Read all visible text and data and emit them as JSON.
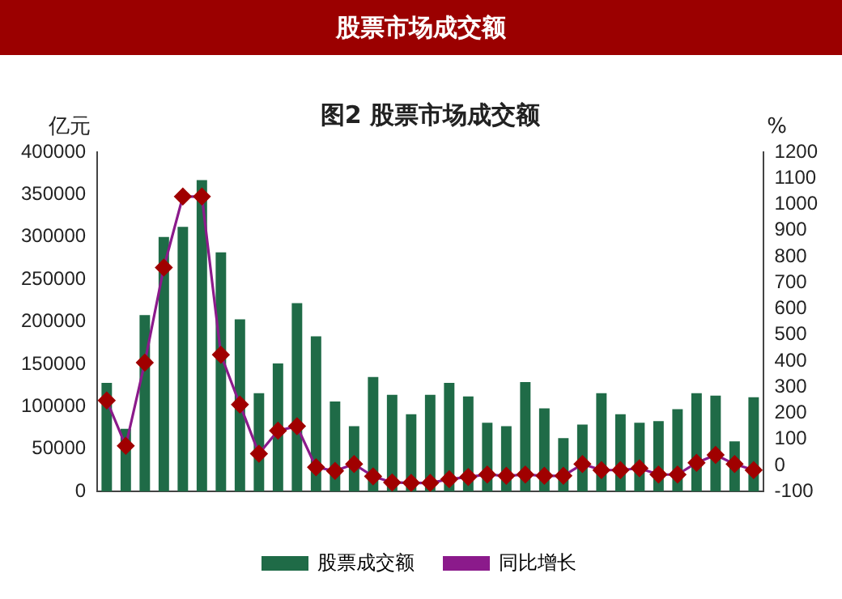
{
  "chart_data": {
    "type": "bar",
    "title": "股票市场成交额",
    "subtitle": "图2 股票市场成交额",
    "ylabel": "亿元",
    "y2label": "%",
    "categories": [
      null,
      null,
      null,
      null,
      null,
      null,
      null,
      null,
      null,
      null,
      null,
      null,
      null,
      null,
      null,
      null,
      null,
      null,
      null,
      null,
      null,
      null,
      null,
      null,
      null,
      null,
      null,
      null,
      null,
      null,
      null,
      null,
      null,
      null,
      null
    ],
    "series": [
      {
        "name": "股票成交额",
        "color": "#1f6b47",
        "values": [
          128000,
          74000,
          208000,
          300000,
          312000,
          367000,
          282000,
          203000,
          116000,
          151000,
          222000,
          183000,
          106000,
          77000,
          135000,
          114000,
          91000,
          114000,
          128000,
          112000,
          81000,
          77000,
          129000,
          98000,
          63000,
          79000,
          116000,
          91000,
          81000,
          83000,
          97000,
          116000,
          113000,
          59000,
          111000
        ]
      },
      {
        "name": "同比增长",
        "type": "line",
        "axis": "y2",
        "color": "#8b1a8b",
        "values": [
          249,
          75,
          394,
          758,
          1030,
          1030,
          424,
          233,
          45,
          133,
          150,
          -7,
          -21,
          5,
          -42,
          -65,
          -67,
          -67,
          -53,
          -44,
          -35,
          -40,
          -35,
          -40,
          -40,
          5,
          -18,
          -18,
          -11,
          -35,
          -35,
          10,
          40,
          5,
          -18
        ]
      }
    ],
    "ylim": [
      0,
      400000
    ],
    "yticks": [
      0,
      50000,
      100000,
      150000,
      200000,
      250000,
      300000,
      350000,
      400000
    ],
    "y2lim": [
      -100,
      1200
    ],
    "y2ticks": [
      -100,
      0,
      100,
      200,
      300,
      400,
      500,
      600,
      700,
      800,
      900,
      1000,
      1100,
      1200
    ],
    "legend": "bottom",
    "marker": "diamond",
    "line_style": "solid"
  }
}
